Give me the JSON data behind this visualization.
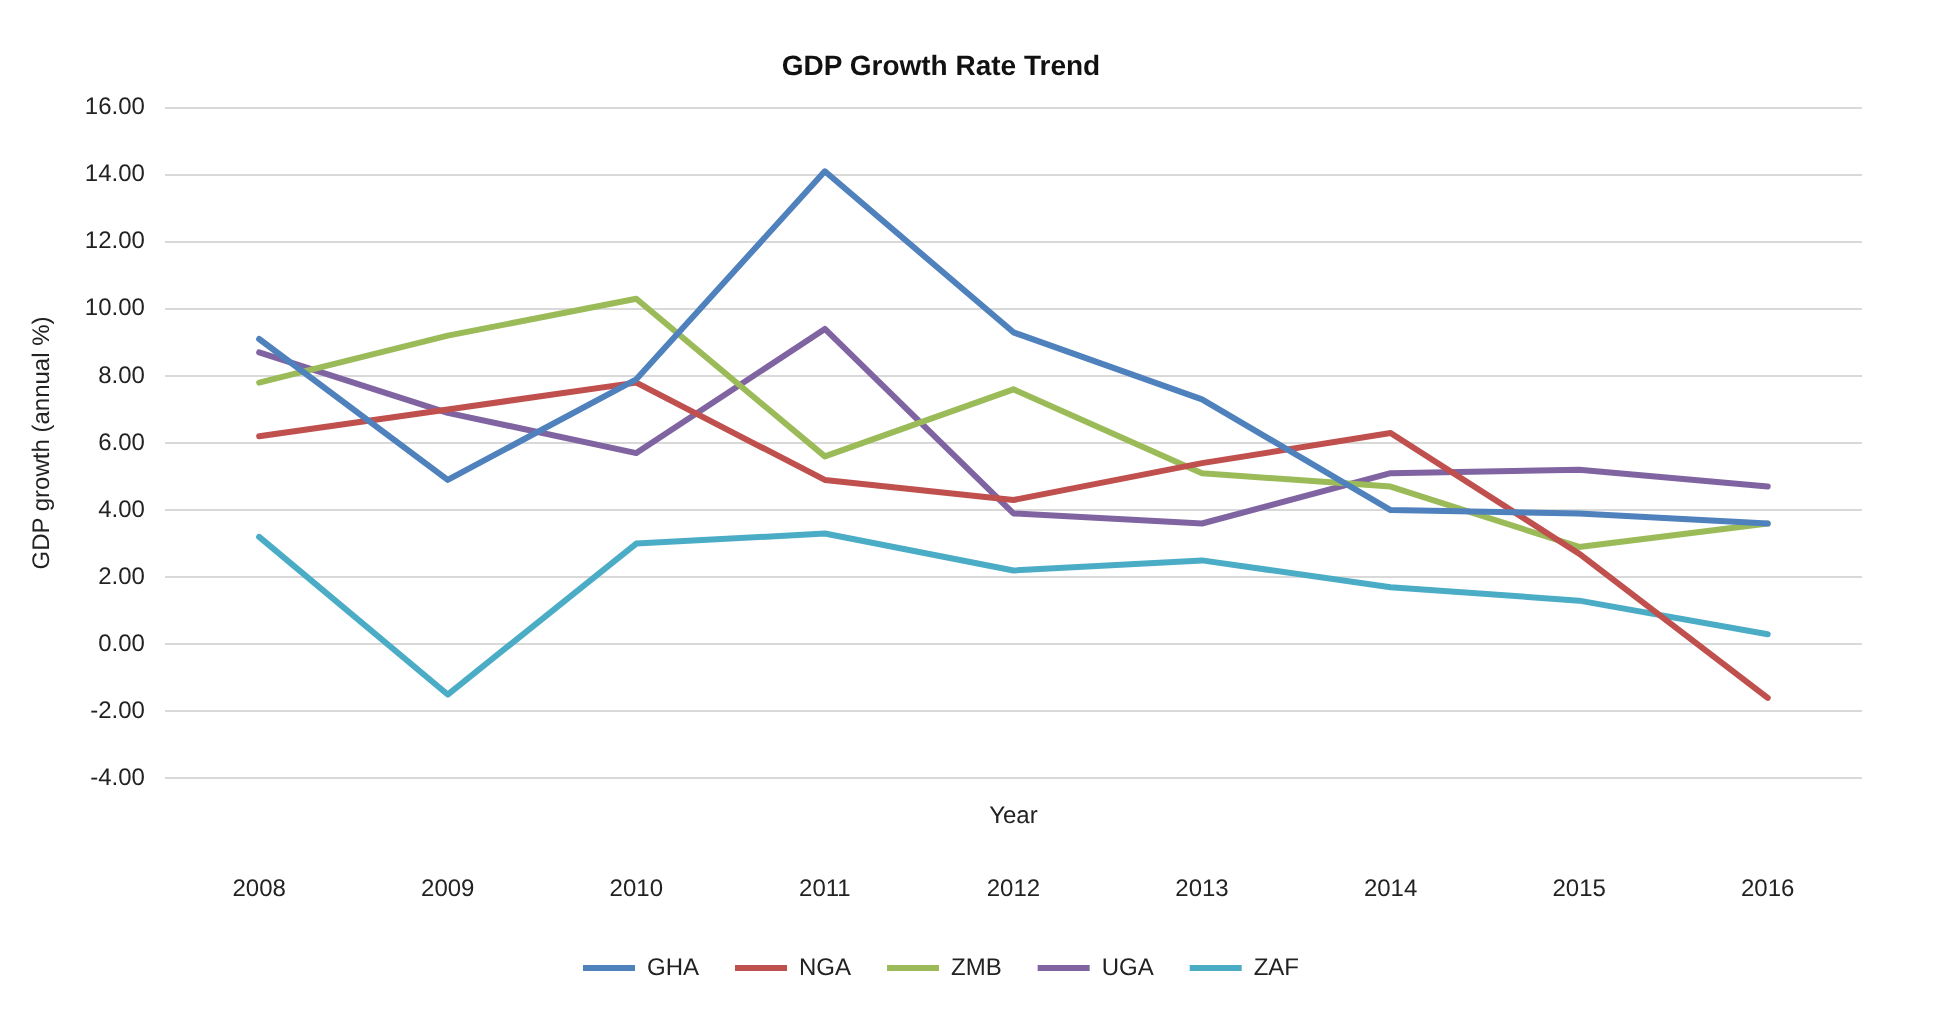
{
  "chart_data": {
    "type": "line",
    "title": "GDP Growth Rate Trend",
    "xlabel": "Year",
    "ylabel": "GDP growth (annual %)",
    "categories": [
      "2008",
      "2009",
      "2010",
      "2011",
      "2012",
      "2013",
      "2014",
      "2015",
      "2016"
    ],
    "series": [
      {
        "name": "GHA",
        "color": "#4f81bd",
        "values": [
          9.1,
          4.9,
          7.9,
          14.1,
          9.3,
          7.3,
          4.0,
          3.9,
          3.6
        ]
      },
      {
        "name": "NGA",
        "color": "#c0504d",
        "values": [
          6.2,
          7.0,
          7.8,
          4.9,
          4.3,
          5.4,
          6.3,
          2.7,
          -1.6
        ]
      },
      {
        "name": "ZMB",
        "color": "#9bbb59",
        "values": [
          7.8,
          9.2,
          10.3,
          5.6,
          7.6,
          5.1,
          4.7,
          2.9,
          3.6
        ]
      },
      {
        "name": "UGA",
        "color": "#8064a2",
        "values": [
          8.7,
          6.9,
          5.7,
          9.4,
          3.9,
          3.6,
          5.1,
          5.2,
          4.7
        ]
      },
      {
        "name": "ZAF",
        "color": "#4bacc6",
        "values": [
          3.2,
          -1.5,
          3.0,
          3.3,
          2.2,
          2.5,
          1.7,
          1.3,
          0.3
        ]
      }
    ],
    "ylim": [
      -4,
      16
    ],
    "yticks": [
      {
        "value": -4,
        "label": "-4.00"
      },
      {
        "value": -2,
        "label": "-2.00"
      },
      {
        "value": 0,
        "label": "0.00"
      },
      {
        "value": 2,
        "label": "2.00"
      },
      {
        "value": 4,
        "label": "4.00"
      },
      {
        "value": 6,
        "label": "6.00"
      },
      {
        "value": 8,
        "label": "8.00"
      },
      {
        "value": 10,
        "label": "10.00"
      },
      {
        "value": 12,
        "label": "12.00"
      },
      {
        "value": 14,
        "label": "14.00"
      },
      {
        "value": 16,
        "label": "16.00"
      }
    ],
    "grid": "y",
    "legend": "bottom",
    "marker": "none",
    "line_style": "solid"
  }
}
